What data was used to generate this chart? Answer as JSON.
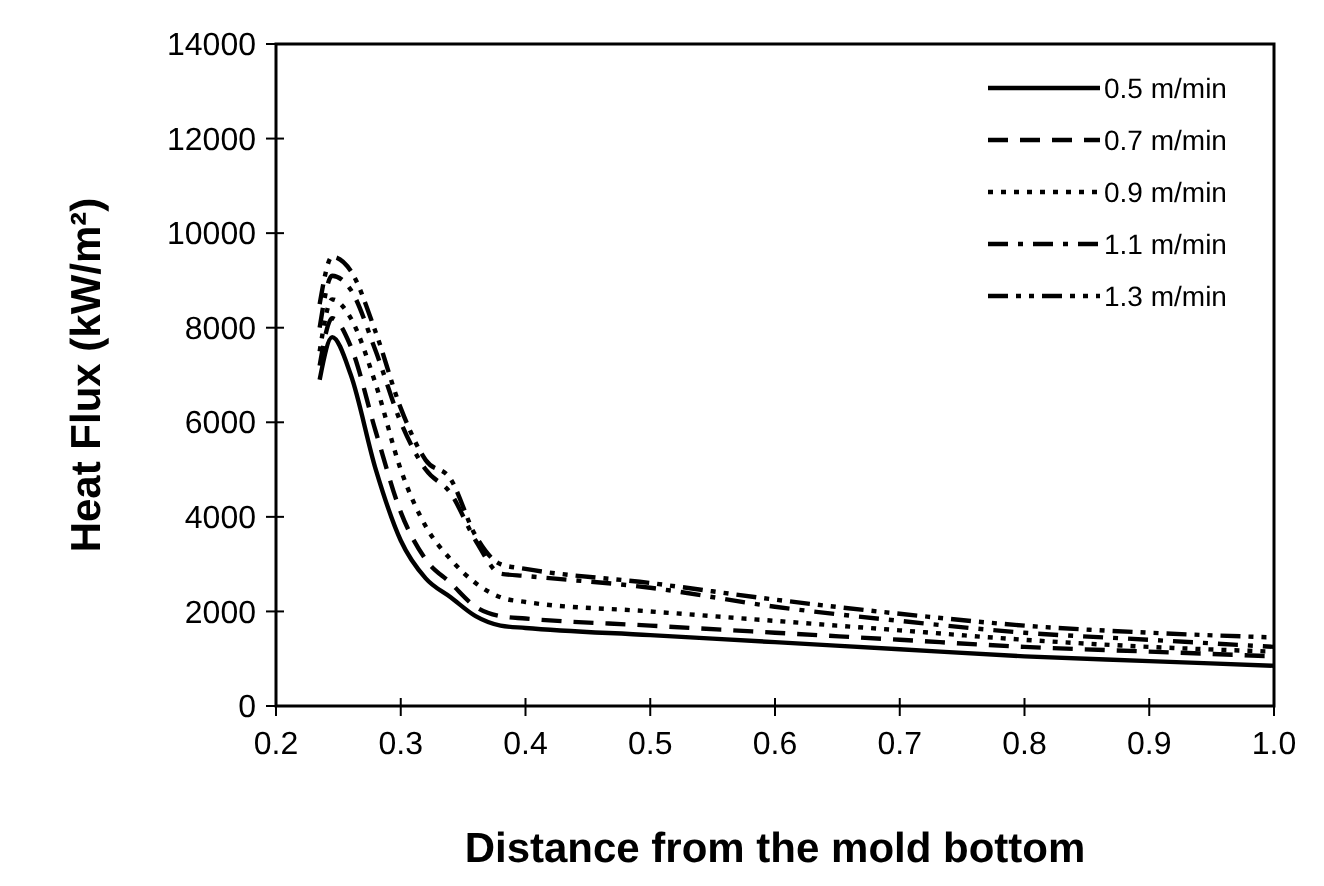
{
  "chart_data": {
    "type": "line",
    "xlabel": "Distance from the mold bottom",
    "ylabel": "Heat Flux (kW/m²)",
    "xlim": [
      0.2,
      1
    ],
    "xticks": [
      0.2,
      0.3,
      0.4,
      0.5,
      0.6,
      0.7,
      0.8,
      0.9,
      {
        "value": 1,
        "label": "1.0"
      }
    ],
    "ylim": [
      0,
      14000
    ],
    "yticks": [
      0,
      2000,
      4000,
      6000,
      8000,
      10000,
      12000,
      14000
    ],
    "grid": false,
    "legend": "top right",
    "marker": "none",
    "x": [
      0.235,
      0.245,
      0.26,
      0.28,
      0.3,
      0.32,
      0.34,
      0.36,
      0.38,
      0.4,
      0.5,
      0.6,
      0.7,
      0.8,
      0.9,
      1
    ],
    "series": [
      {
        "name": "0.5 m/min",
        "color": "#000000",
        "line_style": "solid",
        "values": [
          6900,
          7800,
          7000,
          5000,
          3500,
          2700,
          2300,
          1900,
          1700,
          1650,
          1500,
          1350,
          1200,
          1050,
          950,
          850
        ]
      },
      {
        "name": "0.7 m/min",
        "color": "#000000",
        "line_style": "dashed",
        "values": [
          7200,
          8200,
          7600,
          5800,
          4100,
          3100,
          2600,
          2100,
          1900,
          1850,
          1700,
          1550,
          1400,
          1250,
          1150,
          1050
        ]
      },
      {
        "name": "0.9 m/min",
        "color": "#000000",
        "line_style": "dotted",
        "values": [
          7500,
          8600,
          8200,
          6800,
          5000,
          3800,
          3100,
          2600,
          2300,
          2200,
          2000,
          1800,
          1600,
          1400,
          1250,
          1150
        ]
      },
      {
        "name": "1.1 m/min",
        "color": "#000000",
        "line_style": "dashdot",
        "values": [
          8000,
          9100,
          8800,
          7500,
          6000,
          5000,
          4500,
          3500,
          2800,
          2750,
          2500,
          2100,
          1800,
          1550,
          1400,
          1250
        ]
      },
      {
        "name": "1.3 m/min",
        "color": "#000000",
        "line_style": "dashdotdot",
        "values": [
          8500,
          9500,
          9200,
          7900,
          6300,
          5200,
          4800,
          3600,
          3000,
          2900,
          2600,
          2250,
          1950,
          1700,
          1550,
          1450
        ]
      }
    ]
  }
}
